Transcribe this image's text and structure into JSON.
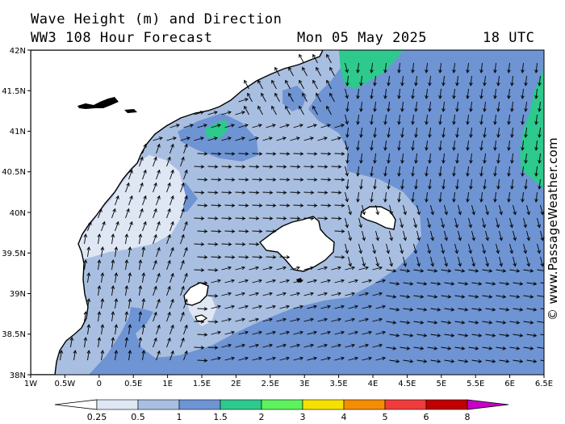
{
  "header": {
    "title": "Wave Height (m) and Direction",
    "model_forecast": "WW3 108 Hour Forecast",
    "date": "Mon 05 May 2025",
    "time": "18 UTC"
  },
  "axes": {
    "lon_labels": [
      "1W",
      "0.5W",
      "0",
      "0.5E",
      "1E",
      "1.5E",
      "2E",
      "2.5E",
      "3E",
      "3.5E",
      "4E",
      "4.5E",
      "5E",
      "5.5E",
      "6E",
      "6.5E"
    ],
    "lat_labels": [
      "42N",
      "41.5N",
      "41N",
      "40.5N",
      "40N",
      "39.5N",
      "39N",
      "38.5N",
      "38N"
    ]
  },
  "legend": {
    "labels": [
      "0.25",
      "0.5",
      "1",
      "1.5",
      "2",
      "3",
      "4",
      "5",
      "6",
      "8"
    ],
    "colors": [
      "#ffffff",
      "#dfe6f4",
      "#a9bfe1",
      "#6e94d3",
      "#2ec98d",
      "#5ef25e",
      "#f5e100",
      "#f58d00",
      "#f03c3c",
      "#c00000",
      "#c800c8"
    ]
  },
  "credit": "© www.PassageWeather.com",
  "colors": {
    "land": "#ffffff",
    "coastline": "#000000",
    "arrow": "#000000"
  }
}
